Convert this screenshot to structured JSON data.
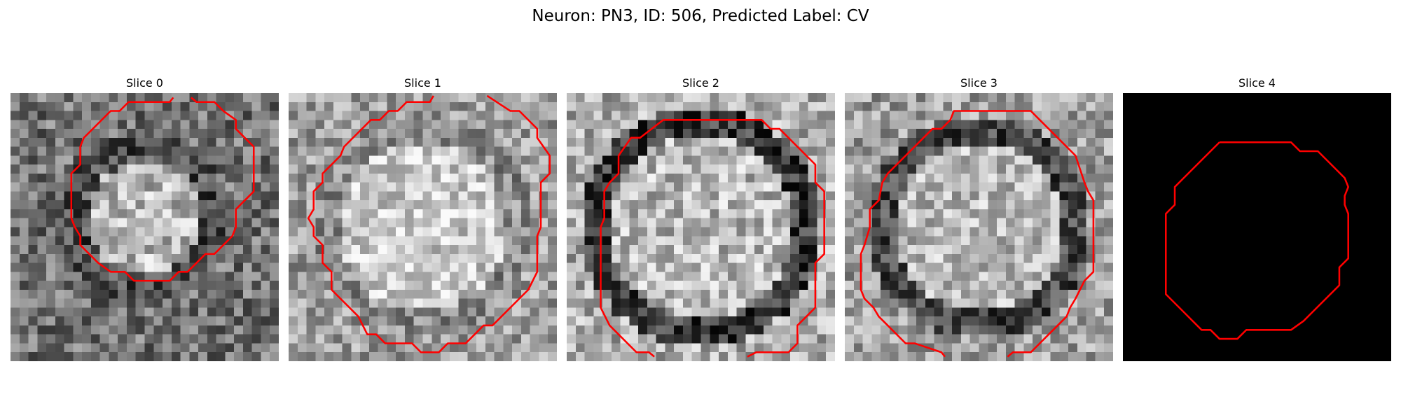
{
  "figure": {
    "title": "Neuron: PN3, ID: 506, Predicted Label: CV"
  },
  "slices": [
    {
      "title": "Slice 0",
      "content": "grayscale-noise-with-contour"
    },
    {
      "title": "Slice 1",
      "content": "grayscale-noise-with-contour"
    },
    {
      "title": "Slice 2",
      "content": "grayscale-noise-with-contour"
    },
    {
      "title": "Slice 3",
      "content": "grayscale-noise-with-contour"
    },
    {
      "title": "Slice 4",
      "content": "black-with-contour"
    }
  ],
  "colors": {
    "contour": "#ff0000",
    "background_slice4": "#000000"
  }
}
